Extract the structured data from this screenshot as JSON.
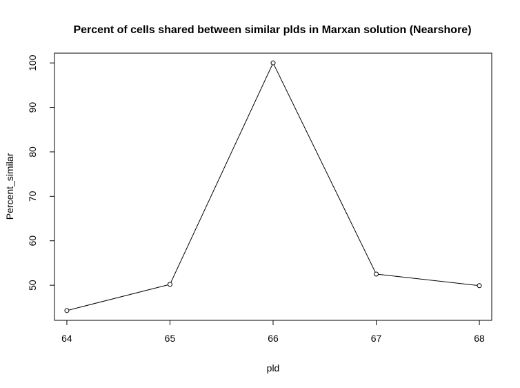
{
  "chart_data": {
    "type": "line",
    "title": "Percent of cells shared between similar plds in Marxan solution (Nearshore)",
    "xlabel": "pld",
    "ylabel": "Percent_similar",
    "x": [
      64,
      65,
      66,
      67,
      68
    ],
    "series": [
      {
        "values": [
          44.3,
          50.2,
          100.0,
          52.5,
          49.9
        ]
      }
    ],
    "xlim": [
      63.88,
      68.12
    ],
    "ylim": [
      42.1,
      102.2
    ],
    "xticks": [
      64,
      65,
      66,
      67,
      68
    ],
    "xtick_labels": [
      "64",
      "65",
      "66",
      "67",
      "68"
    ],
    "yticks": [
      50,
      60,
      70,
      80,
      90,
      100
    ],
    "ytick_labels": [
      "50",
      "60",
      "70",
      "80",
      "90",
      "100"
    ],
    "grid": false,
    "legend": "none",
    "line_color": "#000000",
    "marker": "open-circle"
  }
}
